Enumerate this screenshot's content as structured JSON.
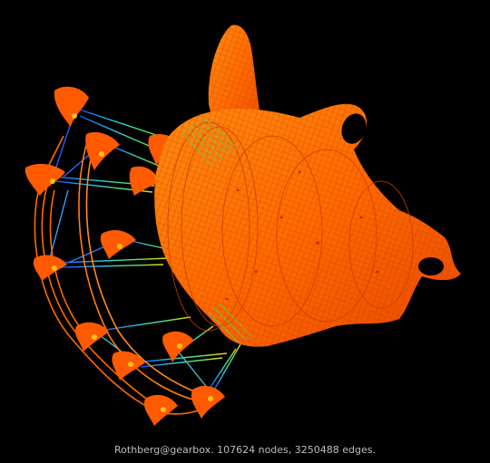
{
  "caption": "Rothberg@gearbox. 107624 nodes, 3250488 edges.",
  "colors": {
    "background": "#000000",
    "mesh_primary": "#ff6a00",
    "mesh_dark": "#e04000",
    "mesh_light": "#ff9a20",
    "edge_near": "#ffd000",
    "edge_mid": "#40e080",
    "edge_far": "#1a50ff",
    "caption_text": "#bdbdbd"
  }
}
